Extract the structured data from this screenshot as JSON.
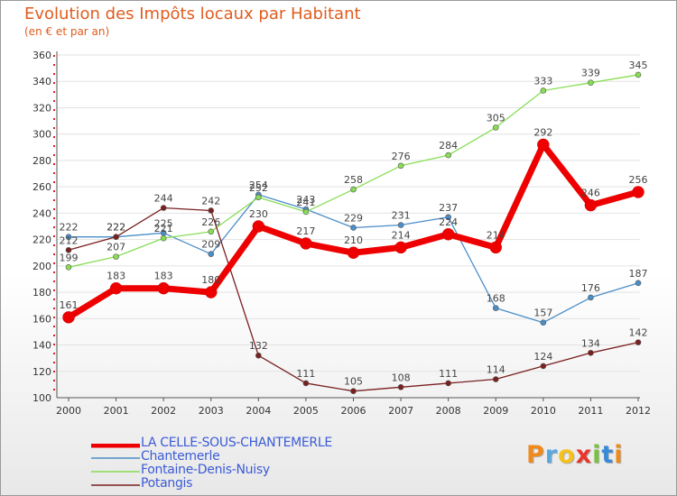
{
  "chart_data": {
    "type": "line",
    "title": "Evolution des Impôts locaux par Habitant",
    "subtitle": "(en € et par an)",
    "xlabel": "",
    "ylabel": "",
    "x": [
      "2000",
      "2001",
      "2002",
      "2003",
      "2004",
      "2005",
      "2006",
      "2007",
      "2008",
      "2009",
      "2010",
      "2011",
      "2012"
    ],
    "ylim": [
      100,
      360
    ],
    "yticks": [
      100,
      120,
      140,
      160,
      180,
      200,
      220,
      240,
      260,
      280,
      300,
      320,
      340,
      360
    ],
    "grid": true,
    "legend_position": "bottom-left",
    "series": [
      {
        "name": "LA CELLE-SOUS-CHANTEMERLE",
        "color": "#ee0000",
        "thick": true,
        "values": [
          161,
          183,
          183,
          180,
          230,
          217,
          210,
          214,
          224,
          214,
          292,
          246,
          256
        ]
      },
      {
        "name": "Chantemerle",
        "color": "#4a8ec8",
        "thick": false,
        "values": [
          222,
          222,
          225,
          209,
          254,
          243,
          229,
          231,
          237,
          168,
          157,
          176,
          187
        ]
      },
      {
        "name": "Fontaine-Denis-Nuisy",
        "color": "#88dd55",
        "thick": false,
        "values": [
          199,
          207,
          221,
          226,
          252,
          241,
          258,
          276,
          284,
          305,
          333,
          339,
          345
        ]
      },
      {
        "name": "Potangis",
        "color": "#7a2020",
        "thick": false,
        "values": [
          212,
          222,
          244,
          242,
          132,
          111,
          105,
          108,
          111,
          114,
          124,
          134,
          142
        ]
      }
    ]
  },
  "logo": {
    "letters": [
      "P",
      "r",
      "o",
      "x",
      "i",
      "t",
      "i"
    ],
    "colors": [
      "#f08a1a",
      "#5aa7e0",
      "#f5c11e",
      "#e8362b",
      "#7ac143",
      "#3b8ad8",
      "#f08a1a"
    ]
  }
}
